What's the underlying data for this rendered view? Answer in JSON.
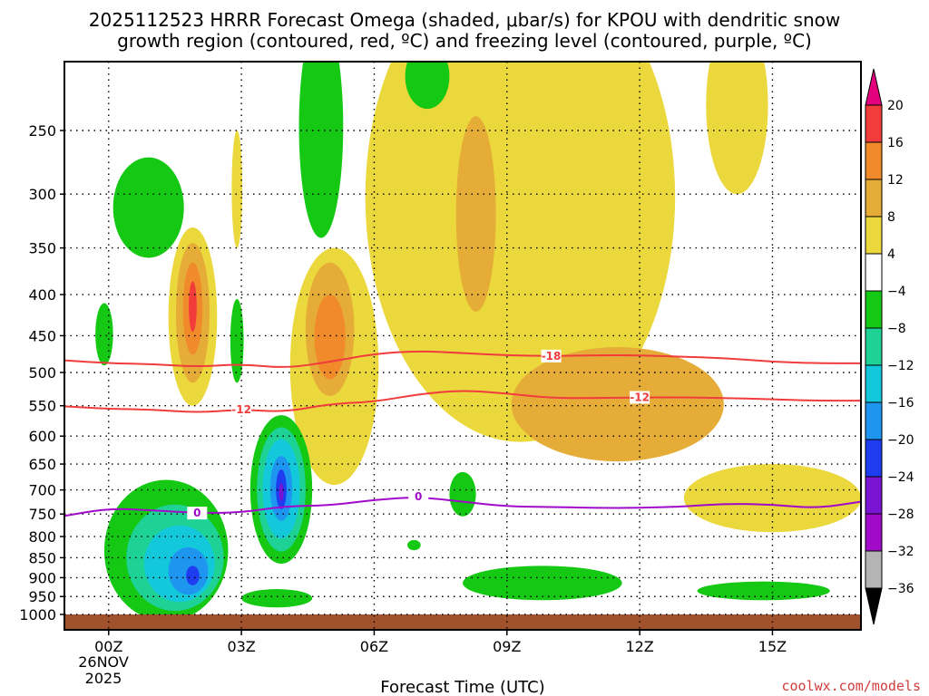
{
  "chart_data": {
    "type": "heatmap",
    "title": {
      "line1": "2025112523 HRRR Forecast Omega (shaded, μbar/s) for KPOU with dendritic snow",
      "line2": "growth region (contoured, red, ºC) and freezing level (contoured, purple, ºC)"
    },
    "xlabel": "Forecast Time (UTC)",
    "x_ticks": [
      "00Z",
      "03Z",
      "06Z",
      "09Z",
      "12Z",
      "15Z"
    ],
    "x_tick_hours": [
      0,
      3,
      6,
      9,
      12,
      15
    ],
    "x_range_hours": [
      -1,
      17
    ],
    "date_label": [
      "26NOV",
      "2025"
    ],
    "y_ticks": [
      250,
      300,
      350,
      400,
      450,
      500,
      550,
      600,
      650,
      700,
      750,
      800,
      850,
      900,
      950,
      1000
    ],
    "y_range_hpa": [
      200,
      1010
    ],
    "colorbar": {
      "levels": [
        20,
        16,
        12,
        8,
        4,
        -4,
        -8,
        -12,
        -16,
        -20,
        -24,
        -28,
        -32,
        -36
      ],
      "colors": [
        "#e4007d",
        "#f23c3c",
        "#f08a2a",
        "#e6ac38",
        "#ebd83c",
        "#ffffff",
        "#14c814",
        "#1ed296",
        "#14c8dc",
        "#1e96f0",
        "#1e3cf0",
        "#7814d2",
        "#a00ac8",
        "#b4b4b4",
        "#000000"
      ]
    },
    "contours": [
      {
        "name": "dendritic-top",
        "label": "-18",
        "color": "#f03c3c",
        "label_hour": 10,
        "points": [
          [
            -1,
            483
          ],
          [
            0,
            487
          ],
          [
            1,
            488
          ],
          [
            2,
            492
          ],
          [
            3,
            488
          ],
          [
            4,
            494
          ],
          [
            5,
            485
          ],
          [
            6,
            474
          ],
          [
            7,
            470
          ],
          [
            8,
            473
          ],
          [
            9,
            476
          ],
          [
            10,
            477
          ],
          [
            11,
            476
          ],
          [
            12,
            476
          ],
          [
            13,
            478
          ],
          [
            14,
            480
          ],
          [
            15,
            485
          ],
          [
            16,
            487
          ],
          [
            17,
            487
          ]
        ]
      },
      {
        "name": "dendritic-bottom",
        "label": "-12",
        "color": "#f03c3c",
        "label_hour": 3,
        "label_hour_2": 12,
        "points": [
          [
            -1,
            551
          ],
          [
            0,
            555
          ],
          [
            1,
            556
          ],
          [
            2,
            561
          ],
          [
            3,
            556
          ],
          [
            4,
            560
          ],
          [
            5,
            547
          ],
          [
            6,
            544
          ],
          [
            7,
            532
          ],
          [
            8,
            526
          ],
          [
            9,
            531
          ],
          [
            10,
            538
          ],
          [
            11,
            538
          ],
          [
            12,
            537
          ],
          [
            13,
            537
          ],
          [
            14,
            538
          ],
          [
            15,
            540
          ],
          [
            16,
            542
          ],
          [
            17,
            542
          ]
        ]
      },
      {
        "name": "freezing-level",
        "label": "0",
        "color": "#a00ac8",
        "label_hour": 2,
        "label_hour_2": 7,
        "points": [
          [
            -1,
            754
          ],
          [
            0,
            738
          ],
          [
            1,
            742
          ],
          [
            2,
            748
          ],
          [
            3,
            747
          ],
          [
            4,
            733
          ],
          [
            5,
            732
          ],
          [
            6,
            720
          ],
          [
            7,
            714
          ],
          [
            8,
            724
          ],
          [
            9,
            734
          ],
          [
            10,
            735
          ],
          [
            11,
            737
          ],
          [
            12,
            737
          ],
          [
            13,
            734
          ],
          [
            14,
            728
          ],
          [
            15,
            730
          ],
          [
            16,
            738
          ],
          [
            17,
            724
          ]
        ]
      }
    ],
    "omega_regions": [
      {
        "name": "rising-col-01-yellow",
        "value": 4,
        "center": [
          1.9,
          440
        ],
        "radius": [
          0.55,
          110
        ]
      },
      {
        "name": "rising-col-01-gold",
        "value": 8,
        "center": [
          1.9,
          430
        ],
        "radius": [
          0.38,
          85
        ]
      },
      {
        "name": "rising-col-01-orange",
        "value": 12,
        "center": [
          1.9,
          420
        ],
        "radius": [
          0.22,
          55
        ]
      },
      {
        "name": "rising-col-01-red",
        "value": 16,
        "center": [
          1.9,
          415
        ],
        "radius": [
          0.09,
          30
        ]
      },
      {
        "name": "rising-col-02-yellow",
        "value": 4,
        "center": [
          5.1,
          520
        ],
        "radius": [
          1.0,
          170
        ]
      },
      {
        "name": "rising-col-02-gold",
        "value": 8,
        "center": [
          5.0,
          450
        ],
        "radius": [
          0.55,
          85
        ]
      },
      {
        "name": "rising-col-02-orange",
        "value": 12,
        "center": [
          5.0,
          455
        ],
        "radius": [
          0.35,
          55
        ]
      },
      {
        "name": "rising-col-03-yellow",
        "value": 4,
        "center": [
          2.9,
          300
        ],
        "radius": [
          0.12,
          50
        ]
      },
      {
        "name": "rising-col-04-yellow",
        "value": 4,
        "center": [
          9.3,
          360
        ],
        "radius": [
          3.5,
          250
        ]
      },
      {
        "name": "rising-col-04-gold",
        "value": 8,
        "center": [
          8.3,
          330
        ],
        "radius": [
          0.45,
          90
        ]
      },
      {
        "name": "rising-col-05-gold",
        "value": 8,
        "center": [
          11.5,
          555
        ],
        "radius": [
          2.4,
          90
        ]
      },
      {
        "name": "rising-col-06-yellow",
        "value": 4,
        "center": [
          15.0,
          720
        ],
        "radius": [
          2.0,
          70
        ]
      },
      {
        "name": "rising-col-07-yellow",
        "value": 4,
        "center": [
          14.2,
          240
        ],
        "radius": [
          0.7,
          60
        ]
      },
      {
        "name": "sinking-01-green",
        "value": -4,
        "center": [
          1.3,
          850
        ],
        "radius": [
          1.4,
          170
        ]
      },
      {
        "name": "sinking-01-teal",
        "value": -8,
        "center": [
          1.5,
          860
        ],
        "radius": [
          1.1,
          130
        ]
      },
      {
        "name": "sinking-01-cyan",
        "value": -12,
        "center": [
          1.6,
          870
        ],
        "radius": [
          0.8,
          95
        ]
      },
      {
        "name": "sinking-01-sky",
        "value": -16,
        "center": [
          1.8,
          885
        ],
        "radius": [
          0.45,
          60
        ]
      },
      {
        "name": "sinking-01-blue",
        "value": -20,
        "center": [
          1.9,
          895
        ],
        "radius": [
          0.15,
          25
        ]
      },
      {
        "name": "sinking-02-green",
        "value": -4,
        "center": [
          3.9,
          715
        ],
        "radius": [
          0.7,
          150
        ]
      },
      {
        "name": "sinking-02-teal",
        "value": -8,
        "center": [
          3.9,
          710
        ],
        "radius": [
          0.55,
          125
        ]
      },
      {
        "name": "sinking-02-cyan",
        "value": -12,
        "center": [
          3.9,
          705
        ],
        "radius": [
          0.42,
          100
        ]
      },
      {
        "name": "sinking-02-sky",
        "value": -16,
        "center": [
          3.9,
          700
        ],
        "radius": [
          0.25,
          65
        ]
      },
      {
        "name": "sinking-02-blue",
        "value": -20,
        "center": [
          3.9,
          700
        ],
        "radius": [
          0.12,
          40
        ]
      },
      {
        "name": "sinking-02-purple",
        "value": -24,
        "center": [
          3.9,
          705
        ],
        "radius": [
          0.05,
          18
        ]
      },
      {
        "name": "sinking-03-green",
        "value": -4,
        "center": [
          4.8,
          260
        ],
        "radius": [
          0.5,
          80
        ]
      },
      {
        "name": "sinking-04-green",
        "value": -4,
        "center": [
          0.9,
          315
        ],
        "radius": [
          0.8,
          45
        ]
      },
      {
        "name": "sinking-05-green",
        "value": -4,
        "center": [
          9.8,
          915
        ],
        "radius": [
          1.8,
          45
        ]
      },
      {
        "name": "sinking-06-green",
        "value": -4,
        "center": [
          14.8,
          935
        ],
        "radius": [
          1.5,
          25
        ]
      },
      {
        "name": "sinking-07-green",
        "value": -4,
        "center": [
          8.0,
          710
        ],
        "radius": [
          0.3,
          45
        ]
      },
      {
        "name": "sinking-08-green",
        "value": -4,
        "center": [
          7.2,
          215
        ],
        "radius": [
          0.5,
          20
        ]
      },
      {
        "name": "sinking-09-green",
        "value": -4,
        "center": [
          -0.1,
          450
        ],
        "radius": [
          0.2,
          40
        ]
      },
      {
        "name": "sinking-10-green",
        "value": -4,
        "center": [
          2.9,
          460
        ],
        "radius": [
          0.15,
          55
        ]
      },
      {
        "name": "sinking-11-green",
        "value": -4,
        "center": [
          3.8,
          955
        ],
        "radius": [
          0.8,
          25
        ]
      },
      {
        "name": "sinking-12-green",
        "value": -4,
        "center": [
          6.9,
          820
        ],
        "radius": [
          0.15,
          12
        ]
      }
    ],
    "ground": {
      "color": "#a0522d",
      "pressure": 1000
    }
  },
  "credit": "coolwx.com/models"
}
